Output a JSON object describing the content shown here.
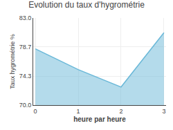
{
  "chart_data": {
    "type": "area",
    "title": "Evolution du taux d'hygrométrie",
    "xlabel": "heure par heure",
    "ylabel": "Taux hygrométrie %",
    "x": [
      0,
      1,
      2,
      3
    ],
    "values": [
      78.4,
      75.3,
      72.7,
      80.8
    ],
    "color": "#6ab8d8",
    "xlim": [
      -0.05,
      3.05
    ],
    "ylim": [
      70.0,
      83.0
    ],
    "xticks": [
      0,
      1,
      2,
      3
    ],
    "yticks": [
      {
        "value": 70.0,
        "label": "70.0"
      },
      74.3,
      78.7,
      {
        "value": 83.0,
        "label": "83.0"
      }
    ],
    "grid": true
  }
}
